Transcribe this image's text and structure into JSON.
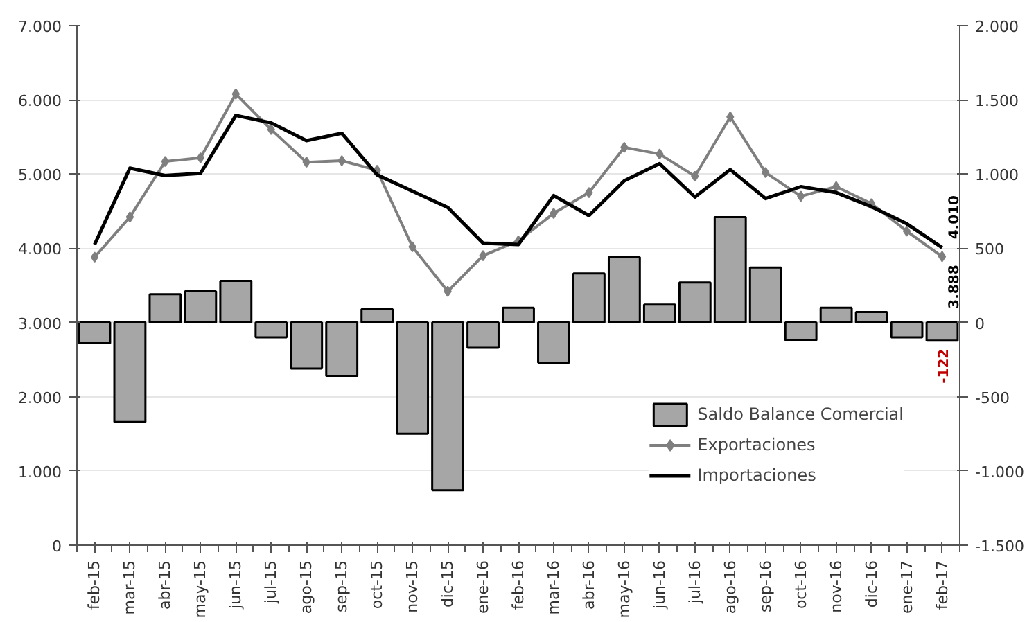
{
  "chart_data": {
    "type": "bar",
    "categories": [
      "feb-15",
      "mar-15",
      "abr-15",
      "may-15",
      "jun-15",
      "jul-15",
      "ago-15",
      "sep-15",
      "oct-15",
      "nov-15",
      "dic-15",
      "ene-16",
      "feb-16",
      "mar-16",
      "abr-16",
      "may-16",
      "jun-16",
      "jul-16",
      "ago-16",
      "sep-16",
      "oct-16",
      "nov-16",
      "dic-16",
      "ene-17",
      "feb-17"
    ],
    "series": [
      {
        "name": "Saldo Balance Comercial",
        "axis": "y2",
        "color": "#a6a6a6",
        "values": [
          -140,
          -670,
          190,
          210,
          280,
          -100,
          -310,
          -360,
          90,
          -750,
          -1130,
          -170,
          100,
          -270,
          330,
          440,
          120,
          270,
          710,
          370,
          -120,
          100,
          70,
          -100,
          -122
        ],
        "value_labels": [
          null,
          null,
          null,
          null,
          null,
          null,
          null,
          null,
          null,
          null,
          null,
          null,
          null,
          null,
          null,
          null,
          null,
          null,
          null,
          null,
          null,
          null,
          null,
          null,
          "-122"
        ]
      },
      {
        "name": "Exportaciones",
        "type": "line",
        "color": "#7f7f7f",
        "marker": "diamond",
        "values": [
          3880,
          4420,
          5170,
          5220,
          6080,
          5600,
          5160,
          5180,
          5050,
          4020,
          3420,
          3900,
          4100,
          4470,
          4750,
          5360,
          5270,
          4970,
          5770,
          5020,
          4700,
          4830,
          4600,
          4230,
          3888
        ],
        "value_labels": [
          null,
          null,
          null,
          null,
          null,
          null,
          null,
          null,
          null,
          null,
          null,
          null,
          null,
          null,
          null,
          null,
          null,
          null,
          null,
          null,
          null,
          null,
          null,
          null,
          "3.888"
        ]
      },
      {
        "name": "Importaciones",
        "type": "line",
        "color": "#000000",
        "marker": "none",
        "values": [
          4050,
          5080,
          4980,
          5010,
          5790,
          5690,
          5450,
          5550,
          4990,
          4770,
          4550,
          4070,
          4050,
          4710,
          4440,
          4910,
          5140,
          4690,
          5060,
          4670,
          4830,
          4750,
          4560,
          4330,
          4010
        ],
        "value_labels": [
          null,
          null,
          null,
          null,
          null,
          null,
          null,
          null,
          null,
          null,
          null,
          null,
          null,
          null,
          null,
          null,
          null,
          null,
          null,
          null,
          null,
          null,
          null,
          null,
          "4.010"
        ]
      }
    ],
    "ylim": [
      0,
      7000
    ],
    "yticks": [
      {
        "value": 0,
        "label": "0"
      },
      {
        "value": 1000,
        "label": "1.000"
      },
      {
        "value": 2000,
        "label": "2.000"
      },
      {
        "value": 3000,
        "label": "3.000"
      },
      {
        "value": 4000,
        "label": "4.000"
      },
      {
        "value": 5000,
        "label": "5.000"
      },
      {
        "value": 6000,
        "label": "6.000"
      },
      {
        "value": 7000,
        "label": "7.000"
      }
    ],
    "y2lim": [
      -1500,
      2000
    ],
    "y2ticks": [
      {
        "value": -1500,
        "label": "-1.500"
      },
      {
        "value": -1000,
        "label": "-1.000"
      },
      {
        "value": -500,
        "label": "-500"
      },
      {
        "value": 0,
        "label": "0"
      },
      {
        "value": 500,
        "label": "500"
      },
      {
        "value": 1000,
        "label": "1.000"
      },
      {
        "value": 1500,
        "label": "1.500"
      },
      {
        "value": 2000,
        "label": "2.000"
      }
    ],
    "grid": "y",
    "legend": "bottom right"
  }
}
